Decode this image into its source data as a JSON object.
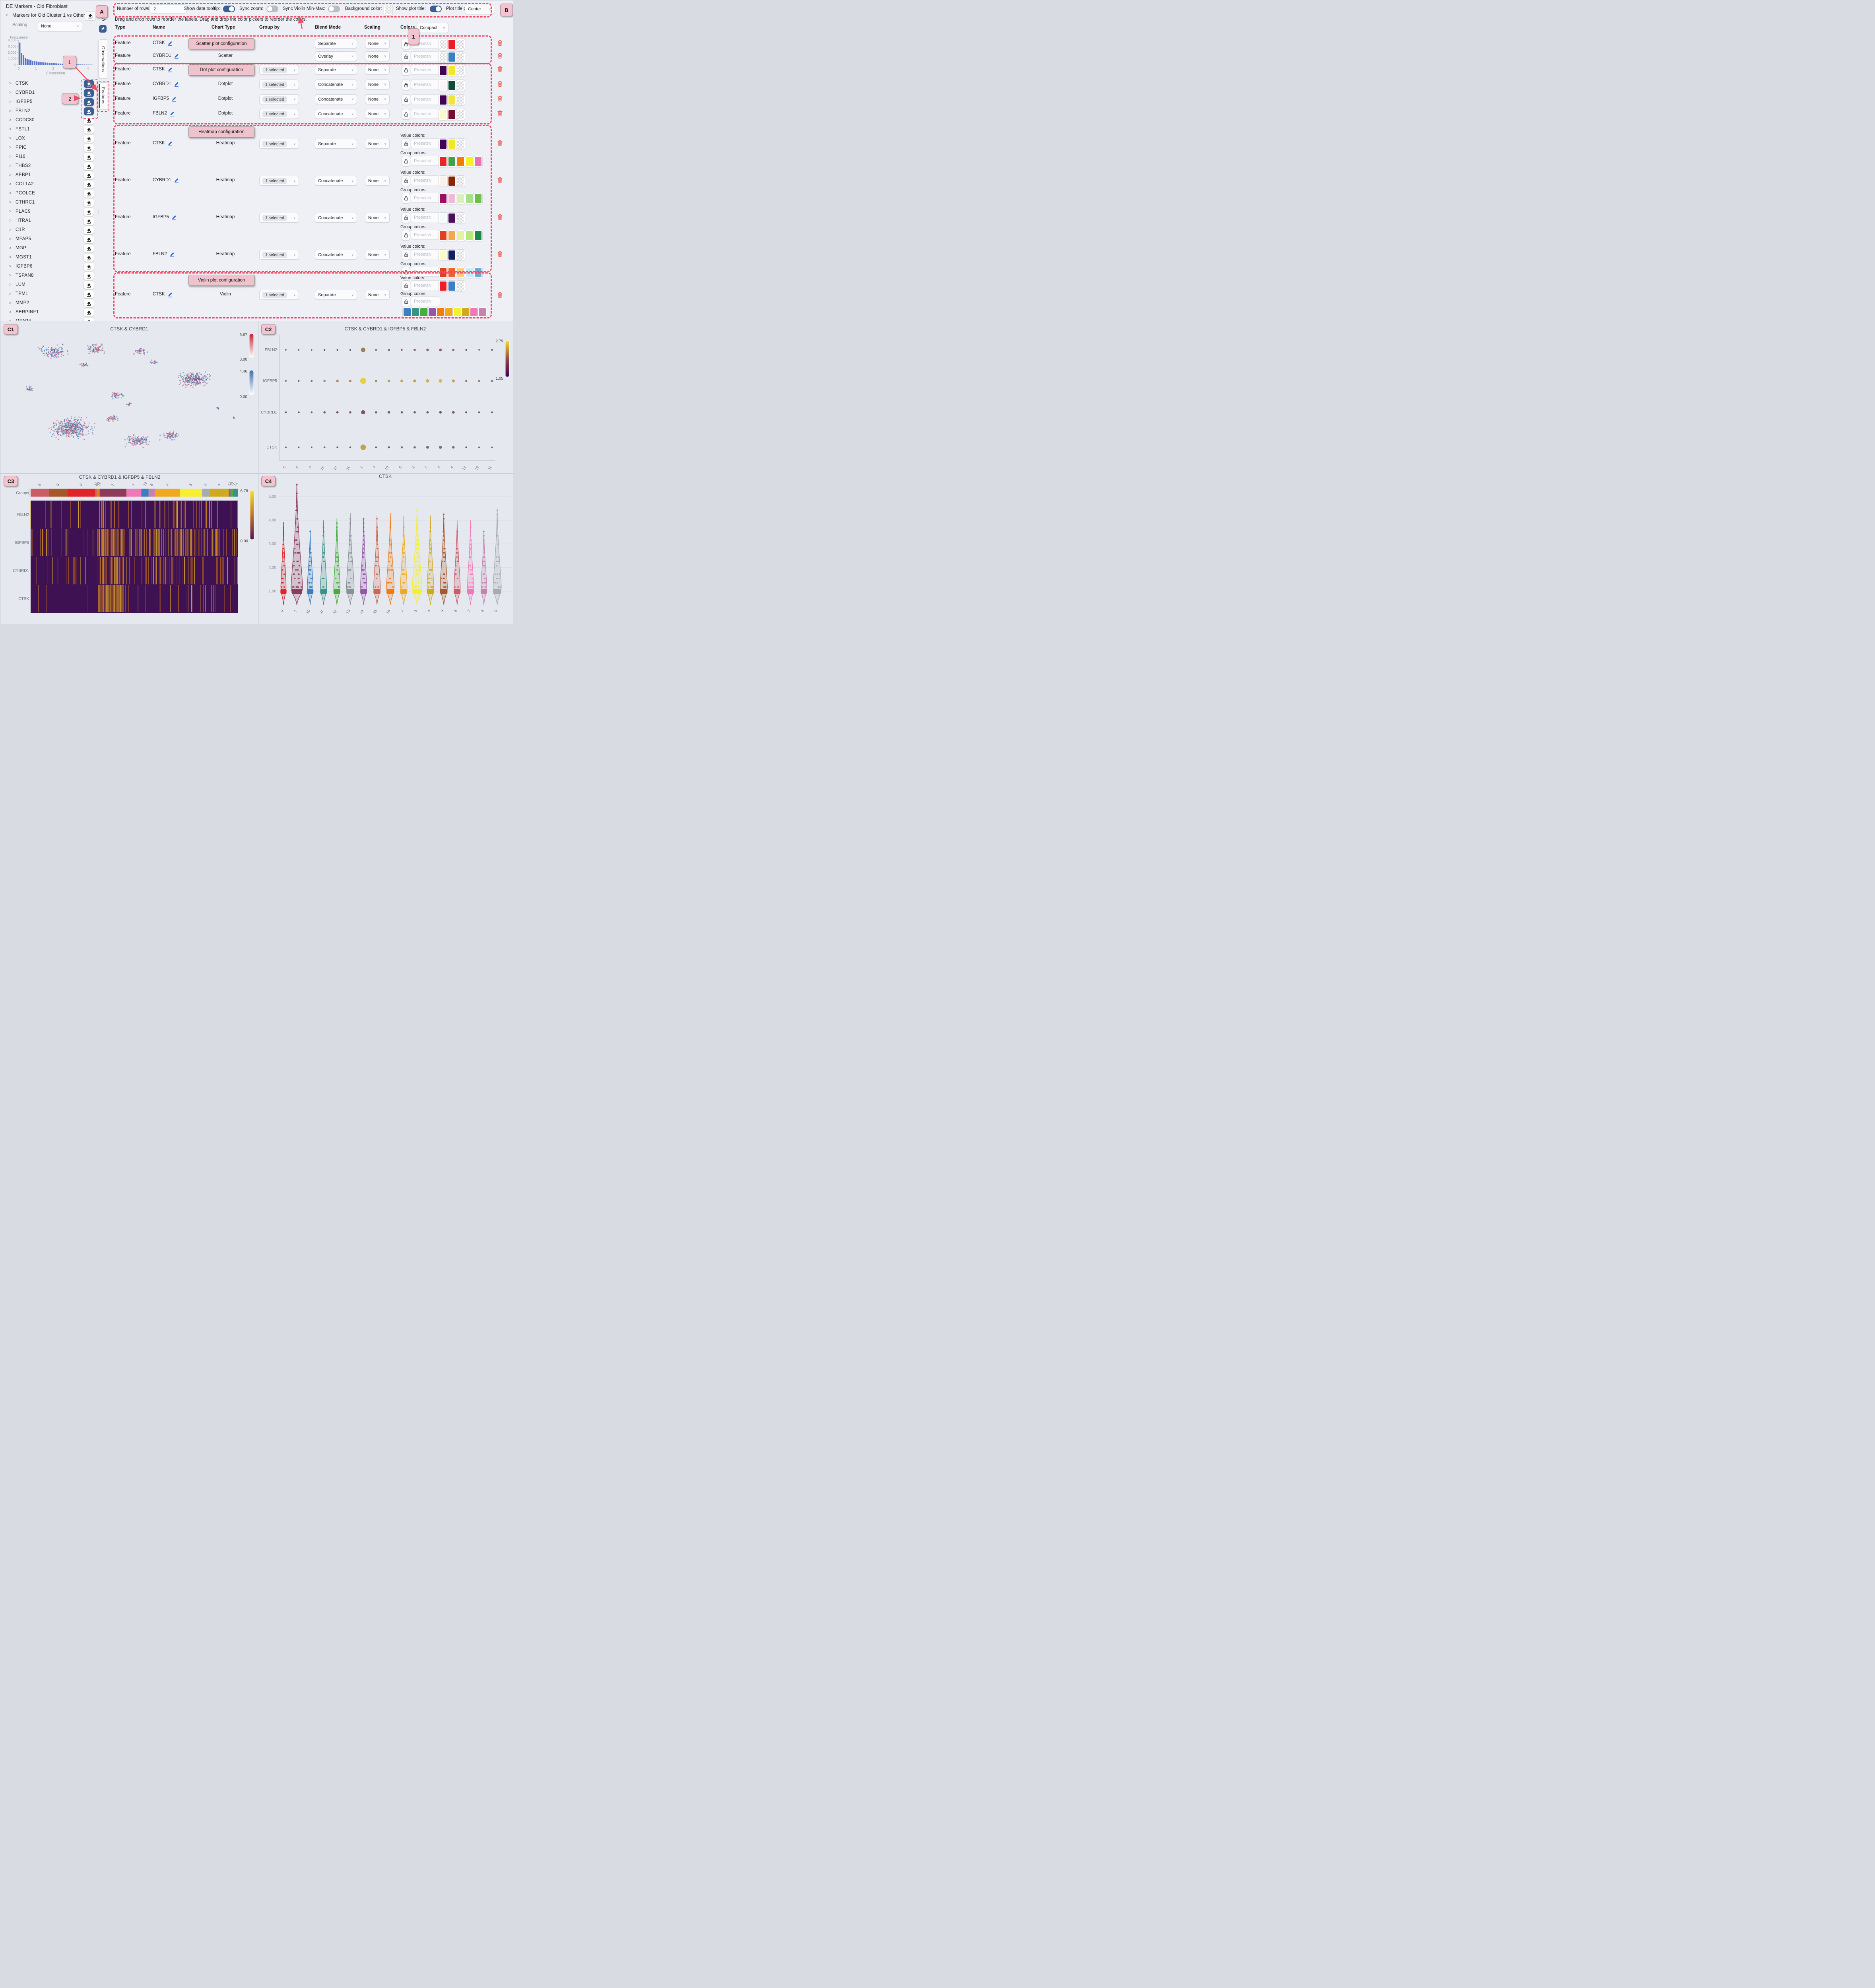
{
  "app_title": "DE Markers - Old Fibroblast",
  "colors": {
    "accent_red": "#ee4b66",
    "badge_pink": "#f2c4cf",
    "toggle_on": "#3a5e96",
    "bucket_blue": "#3b5f95",
    "link_blue": "#2e6bd8",
    "trash_red": "#f25c50",
    "hist_bar": "#5b74c9"
  },
  "icons": {
    "chevron-down": "∨",
    "chevron-right": ">",
    "collapse-left": "‹",
    "ellipsis": "⋮"
  },
  "sidebar": {
    "title": "DE Markers - Old Fibroblast",
    "group": {
      "title": "Markers for Old Cluster 1 vs Others"
    },
    "scaling": {
      "label": "Scaling:",
      "value": "None"
    },
    "tabs": [
      {
        "label": "Observations",
        "active": false
      },
      {
        "label": "Features",
        "active": true
      }
    ],
    "genes": [
      {
        "name": "CTSK",
        "active": true
      },
      {
        "name": "CYBRD1",
        "active": true
      },
      {
        "name": "IGFBP5",
        "active": true
      },
      {
        "name": "FBLN2",
        "active": true
      },
      {
        "name": "CCDC80",
        "active": false
      },
      {
        "name": "FSTL1",
        "active": false
      },
      {
        "name": "LOX",
        "active": false
      },
      {
        "name": "PPIC",
        "active": false
      },
      {
        "name": "PI16",
        "active": false
      },
      {
        "name": "THBS2",
        "active": false
      },
      {
        "name": "AEBP1",
        "active": false
      },
      {
        "name": "COL1A2",
        "active": false
      },
      {
        "name": "PCOLCE",
        "active": false
      },
      {
        "name": "CTHRC1",
        "active": false
      },
      {
        "name": "PLAC9",
        "active": false
      },
      {
        "name": "HTRA1",
        "active": false
      },
      {
        "name": "C1R",
        "active": false
      },
      {
        "name": "MFAP5",
        "active": false
      },
      {
        "name": "MGP",
        "active": false
      },
      {
        "name": "MGST1",
        "active": false
      },
      {
        "name": "IGFBP6",
        "active": false
      },
      {
        "name": "TSPAN8",
        "active": false
      },
      {
        "name": "LUM",
        "active": false
      },
      {
        "name": "TPM1",
        "active": false
      },
      {
        "name": "MMP2",
        "active": false
      },
      {
        "name": "SERPINF1",
        "active": false
      },
      {
        "name": "MFAP4",
        "active": false
      }
    ]
  },
  "toolbar": {
    "rows": {
      "label": "Number of rows:",
      "value": "2"
    },
    "show_tooltip": {
      "label": "Show data tooltip:",
      "on": true
    },
    "sync_zoom": {
      "label": "Sync zoom:",
      "on": false
    },
    "sync_violin": {
      "label": "Sync Violin Min-Max:",
      "on": false
    },
    "bg_color": {
      "label": "Background color:"
    },
    "show_title": {
      "label": "Show plot title:",
      "on": true
    },
    "title_pos": {
      "label": "Plot title position:",
      "value": "Center"
    },
    "hint": "Drag and drop rows to reorder the labels. Drag and drop the color pickers to reorder the colors."
  },
  "config": {
    "headers": {
      "type": "Type",
      "name": "Name",
      "chart": "Chart Type",
      "group": "Group by",
      "blend": "Blend Mode",
      "scaling": "Scaling",
      "colors": "Colors"
    },
    "colors_mode": "Compact",
    "presets_label": "Presets",
    "value_colors_label": "Value colors:",
    "group_colors_label": "Group colors:",
    "sections": [
      {
        "label": "Scatter plot configuration",
        "label_in_row": true,
        "rows": [
          {
            "type": "Feature",
            "name": "CTSK",
            "chart": "",
            "group": null,
            "blend": "Separate",
            "scaling": "None",
            "value_colors": [
              "checker",
              "#ee1c25",
              "checker"
            ]
          },
          {
            "type": "Feature",
            "name": "CYBRD1",
            "chart": "Scatter",
            "group": null,
            "blend": "Overlay",
            "scaling": "None",
            "value_colors": [
              "checker",
              "#3a7fc1",
              "checker"
            ]
          }
        ]
      },
      {
        "label": "Dot plot configuration",
        "label_in_row": true,
        "rows": [
          {
            "type": "Feature",
            "name": "CTSK",
            "chart": "",
            "group": "1 selected",
            "blend": "Separate",
            "scaling": "None",
            "value_colors": [
              "#440154",
              "#f5e626",
              "checker"
            ]
          },
          {
            "type": "Feature",
            "name": "CYBRD1",
            "chart": "Dotplot",
            "group": "1 selected",
            "blend": "Concatenate",
            "scaling": "None",
            "value_colors": [
              "#fdf3f8",
              "#0b4f3a",
              "checker"
            ]
          },
          {
            "type": "Feature",
            "name": "IGFBP5",
            "chart": "Dotplot",
            "group": "1 selected",
            "blend": "Concatenate",
            "scaling": "None",
            "value_colors": [
              "#440154",
              "#f0e442",
              "checker"
            ]
          },
          {
            "type": "Feature",
            "name": "FBLN2",
            "chart": "Dotplot",
            "group": "1 selected",
            "blend": "Concatenate",
            "scaling": "None",
            "value_colors": [
              "#fbf8cc",
              "#7a0c2e",
              "checker"
            ]
          }
        ]
      },
      {
        "label": "Heatmap configuration",
        "label_in_row": false,
        "rows": [
          {
            "type": "Feature",
            "name": "CTSK",
            "chart": "Heatmap",
            "group": "1 selected",
            "blend": "Separate",
            "scaling": "None",
            "value_colors": [
              "#440154",
              "#f5e626",
              "checker"
            ],
            "group_colors": [
              "#e8262a",
              "#43a047",
              "#f57c00",
              "#f4f024",
              "#f06eb4"
            ]
          },
          {
            "type": "Feature",
            "name": "CYBRD1",
            "chart": "Heatmap",
            "group": "1 selected",
            "blend": "Concatenate",
            "scaling": "None",
            "value_colors": [
              "#fdf0ea",
              "#8b2500",
              "checker"
            ],
            "group_colors": [
              "#9a1060",
              "#f2b8d8",
              "#d8f0c0",
              "#a8e08a",
              "#6cc04a"
            ]
          },
          {
            "type": "Feature",
            "name": "IGFBP5",
            "chart": "Heatmap",
            "group": "1 selected",
            "blend": "Concatenate",
            "scaling": "None",
            "value_colors": [
              "#f2fbf7",
              "#4a0e5c",
              "checker"
            ],
            "group_colors": [
              "#e04020",
              "#f5a54f",
              "#e4f2a0",
              "#b8e878",
              "#1a8a4a"
            ]
          },
          {
            "type": "Feature",
            "name": "FBLN2",
            "chart": "Heatmap",
            "group": "1 selected",
            "blend": "Concatenate",
            "scaling": "None",
            "value_colors": [
              "#fbfbc8",
              "#122060",
              "checker"
            ],
            "group_colors": [
              "#e04020",
              "#f06030",
              "#f8d080",
              "#c8ecf5",
              "#6aaad8"
            ]
          }
        ]
      },
      {
        "label": "Violin plot configuration",
        "label_in_row": false,
        "rows": [
          {
            "type": "Feature",
            "name": "CTSK",
            "chart": "Violin",
            "group": "1 selected",
            "blend": "Separate",
            "scaling": "None",
            "value_colors": [
              "#ee1c25",
              "#3a7fc1",
              "checker"
            ],
            "group_colors": [
              "#3a7fc1",
              "#3a9188",
              "#4aab3f",
              "#9456a8",
              "#f07c12",
              "#f0a81e",
              "#f5ef30",
              "#cfa91e",
              "#f078b6",
              "#c783ad"
            ]
          }
        ]
      }
    ]
  },
  "annotations": {
    "a": "A",
    "b": "B",
    "n1": "1",
    "n2": "2",
    "c1": "C1",
    "c2": "C2",
    "c3": "C3",
    "c4": "C4"
  },
  "chart_data": {
    "histogram": {
      "type": "bar",
      "ylabel": "Frequency",
      "xlabel": "Expression",
      "yticks": [
        "4,000",
        "3,000",
        "2,000",
        "1,000",
        "0"
      ],
      "xticks": [
        "0",
        "1",
        "2",
        "3",
        "4"
      ],
      "ymax": 4000,
      "xmax": 4.3,
      "values": [
        3600,
        1920,
        1600,
        1150,
        920,
        860,
        760,
        640,
        590,
        560,
        500,
        460,
        430,
        400,
        370,
        340,
        315,
        290,
        270,
        250,
        230,
        210,
        195,
        180,
        165,
        150,
        135,
        120,
        108,
        96,
        85,
        75,
        66,
        58,
        50,
        44,
        38,
        33,
        28,
        24
      ]
    },
    "c1": {
      "type": "scatter",
      "title": "CTSK & CYBRD1",
      "point_colors": [
        "#3b66a8",
        "#cc4a5e"
      ],
      "colorbars": [
        {
          "max": "5.67",
          "min": "0.00",
          "top": "#c32330",
          "bottom": "#ffffff"
        },
        {
          "max": "4.46",
          "min": "0.00",
          "top": "#3a6fae",
          "bottom": "#ffffff"
        }
      ],
      "clusters": [
        [
          0.2,
          0.12,
          0.075,
          130
        ],
        [
          0.38,
          0.1,
          0.055,
          80
        ],
        [
          0.33,
          0.22,
          0.03,
          25
        ],
        [
          0.57,
          0.12,
          0.04,
          40
        ],
        [
          0.63,
          0.2,
          0.025,
          18
        ],
        [
          0.8,
          0.33,
          0.085,
          260
        ],
        [
          0.1,
          0.4,
          0.03,
          22
        ],
        [
          0.47,
          0.45,
          0.045,
          45
        ],
        [
          0.52,
          0.52,
          0.02,
          12
        ],
        [
          0.28,
          0.7,
          0.115,
          430
        ],
        [
          0.45,
          0.63,
          0.04,
          40
        ],
        [
          0.56,
          0.8,
          0.07,
          130
        ],
        [
          0.7,
          0.76,
          0.05,
          70
        ],
        [
          0.9,
          0.55,
          0.015,
          8
        ],
        [
          0.97,
          0.62,
          0.01,
          5
        ]
      ]
    },
    "c2": {
      "type": "scatter",
      "title": "CTSK & CYBRD1 & IGFBP5 & FBLN2",
      "rows": [
        "FBLN2",
        "IGFBP5",
        "CYBRD1",
        "CTSK"
      ],
      "cols": [
        "6",
        "5",
        "0",
        "15",
        "13",
        "16",
        "1",
        "7",
        "10",
        "8",
        "2",
        "3",
        "9",
        "4",
        "14",
        "12",
        "11"
      ],
      "colorbar": {
        "max": "2.79",
        "min": "1.05"
      },
      "sizes": [
        [
          0.06,
          0.06,
          0.06,
          0.1,
          0.1,
          0.1,
          0.55,
          0.1,
          0.14,
          0.1,
          0.2,
          0.24,
          0.26,
          0.2,
          0.1,
          0.06,
          0.1
        ],
        [
          0.08,
          0.1,
          0.14,
          0.2,
          0.26,
          0.22,
          0.8,
          0.2,
          0.26,
          0.28,
          0.3,
          0.36,
          0.4,
          0.3,
          0.14,
          0.12,
          0.14
        ],
        [
          0.12,
          0.12,
          0.12,
          0.18,
          0.2,
          0.18,
          0.5,
          0.18,
          0.22,
          0.18,
          0.2,
          0.2,
          0.24,
          0.26,
          0.14,
          0.12,
          0.12
        ],
        [
          0.06,
          0.06,
          0.06,
          0.1,
          0.12,
          0.1,
          0.72,
          0.1,
          0.14,
          0.16,
          0.2,
          0.28,
          0.3,
          0.24,
          0.1,
          0.06,
          0.06
        ]
      ],
      "dot_colors": [
        [
          "#6b4560",
          "#6b4560",
          "#6b4560",
          "#6b4560",
          "#6b4560",
          "#6b4560",
          "#9a7050",
          "#6b4560",
          "#7a4c62",
          "#6b4560",
          "#85566e",
          "#85566e",
          "#85566e",
          "#85566e",
          "#6b4560",
          "#6b4560",
          "#6b4560"
        ],
        [
          "#7a5540",
          "#7a5540",
          "#8a6a45",
          "#a8824e",
          "#b08c4a",
          "#a8824e",
          "#e8cc30",
          "#a8824e",
          "#b89a45",
          "#bfa040",
          "#bfa040",
          "#ccae3c",
          "#d4b838",
          "#c2a040",
          "#8a6a45",
          "#8a6a45",
          "#8a6a45"
        ],
        [
          "#6b4560",
          "#6b4560",
          "#6b4560",
          "#6b4560",
          "#6b4560",
          "#6b4560",
          "#7a4662",
          "#6b4560",
          "#6b4560",
          "#6b4560",
          "#6b4560",
          "#6b4560",
          "#6b4560",
          "#7a4e66",
          "#6b4560",
          "#6b4560",
          "#6b4560"
        ],
        [
          "#6b4560",
          "#6b4560",
          "#6b4560",
          "#6b4560",
          "#6b4560",
          "#6b4560",
          "#bca32c",
          "#6b4560",
          "#6b4560",
          "#85566e",
          "#85566e",
          "#85566e",
          "#85566e",
          "#85566e",
          "#6b4560",
          "#6b4560",
          "#6b4560"
        ]
      ]
    },
    "c3": {
      "type": "heatmap",
      "title": "CTSK & CYBRD1 & IGFBP5 & FBLN2",
      "groups_label": "Groups",
      "rows": [
        "FBLN2",
        "IGFBP5",
        "CYBRD1",
        "CTSK"
      ],
      "colorbar": {
        "max": "6.78",
        "min": "0.00"
      },
      "base_color": "#3d1152",
      "stripe_palette": [
        "#f0c325",
        "#e8a21e",
        "#c9731e",
        "#a85a14"
      ],
      "segments": [
        {
          "label": "6",
          "color": "#cc5b68",
          "w": 8.7
        },
        {
          "label": "5",
          "color": "#a8572b",
          "w": 8.7
        },
        {
          "label": "0",
          "color": "#e02428",
          "w": 13
        },
        {
          "label": "15",
          "color": "#cc6852",
          "w": 0.8
        },
        {
          "label": "13",
          "color": "#8a9097",
          "w": 0.6
        },
        {
          "label": "16",
          "color": "#f07c12",
          "w": 0.7
        },
        {
          "label": "1",
          "color": "#8e3a5a",
          "w": 12.6
        },
        {
          "label": "7",
          "color": "#f078b6",
          "w": 7
        },
        {
          "label": "10",
          "color": "#3a7fc1",
          "w": 3.4
        },
        {
          "label": "8",
          "color": "#c783ad",
          "w": 3.2
        },
        {
          "label": "2",
          "color": "#f0a81e",
          "w": 11.6
        },
        {
          "label": "3",
          "color": "#f5ef30",
          "w": 10.4
        },
        {
          "label": "9",
          "color": "#a7abb0",
          "w": 3.6
        },
        {
          "label": "4",
          "color": "#cfa91e",
          "w": 9
        },
        {
          "label": "14",
          "color": "#9456a8",
          "w": 0.8
        },
        {
          "label": "12",
          "color": "#4aab3f",
          "w": 1.2
        },
        {
          "label": "11",
          "color": "#3a9188",
          "w": 2.4
        }
      ],
      "row_densities": [
        {
          "base": 0.1,
          "boost": 0.3,
          "tail": [
            0.5,
            0.95,
            0.16
          ]
        },
        {
          "base": 0.22,
          "boost": 0.55,
          "tail": [
            0.5,
            0.9,
            0.3
          ]
        },
        {
          "base": 0.12,
          "boost": 0.5,
          "tail": [
            0.55,
            0.8,
            0.18
          ]
        },
        {
          "base": 0.06,
          "boost": 0.7,
          "tail": [
            0.7,
            0.9,
            0.12
          ]
        }
      ]
    },
    "c4": {
      "type": "area",
      "title": "CTSK",
      "yticks": [
        "5.00",
        "4.00",
        "3.00",
        "2.00",
        "1.00"
      ],
      "violins": [
        {
          "label": "0",
          "color": "#e02428",
          "top": 3.9,
          "bulge": 0.3
        },
        {
          "label": "1",
          "color": "#8e3a5a",
          "top": 5.55,
          "bulge": 0.95
        },
        {
          "label": "10",
          "color": "#3a7fc1",
          "top": 3.6,
          "bulge": 0.35
        },
        {
          "label": "11",
          "color": "#3a9188",
          "top": 4.0,
          "bulge": 0.4
        },
        {
          "label": "12",
          "color": "#4aab3f",
          "top": 4.1,
          "bulge": 0.42
        },
        {
          "label": "13",
          "color": "#8a9097",
          "top": 4.3,
          "bulge": 0.55
        },
        {
          "label": "14",
          "color": "#9456a8",
          "top": 4.1,
          "bulge": 0.4
        },
        {
          "label": "15",
          "color": "#cc6852",
          "top": 4.2,
          "bulge": 0.45
        },
        {
          "label": "16",
          "color": "#f07c12",
          "top": 4.3,
          "bulge": 0.55
        },
        {
          "label": "2",
          "color": "#f0a81e",
          "top": 4.2,
          "bulge": 0.45
        },
        {
          "label": "3",
          "color": "#f5ef30",
          "top": 4.5,
          "bulge": 0.75
        },
        {
          "label": "4",
          "color": "#cfa91e",
          "top": 4.2,
          "bulge": 0.45
        },
        {
          "label": "5",
          "color": "#a8572b",
          "top": 4.3,
          "bulge": 0.5
        },
        {
          "label": "6",
          "color": "#cc5b68",
          "top": 4.0,
          "bulge": 0.4
        },
        {
          "label": "7",
          "color": "#f078b6",
          "top": 4.0,
          "bulge": 0.4
        },
        {
          "label": "8",
          "color": "#c783ad",
          "top": 3.6,
          "bulge": 0.35
        },
        {
          "label": "9",
          "color": "#a7abb0",
          "top": 4.5,
          "bulge": 0.6
        }
      ]
    }
  }
}
